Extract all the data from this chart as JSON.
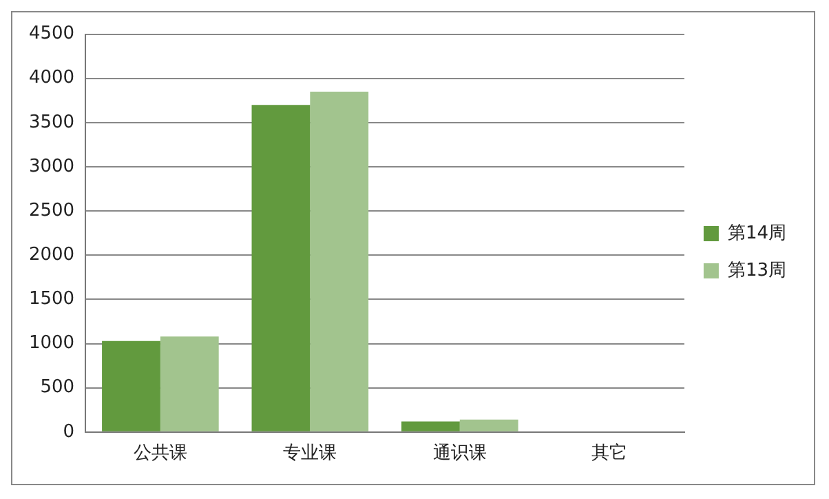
{
  "chart_data": {
    "type": "bar",
    "categories": [
      "公共课",
      "专业课",
      "通识课",
      "其它"
    ],
    "series": [
      {
        "name": "第14周",
        "color": "#629a3e",
        "values": [
          1030,
          3700,
          120,
          0
        ]
      },
      {
        "name": "第13周",
        "color": "#a2c48e",
        "values": [
          1080,
          3850,
          140,
          0
        ]
      }
    ],
    "ylim": [
      0,
      4500
    ],
    "yticks": [
      0,
      500,
      1000,
      1500,
      2000,
      2500,
      3000,
      3500,
      4000,
      4500
    ],
    "grid": "y",
    "legend": "right"
  }
}
